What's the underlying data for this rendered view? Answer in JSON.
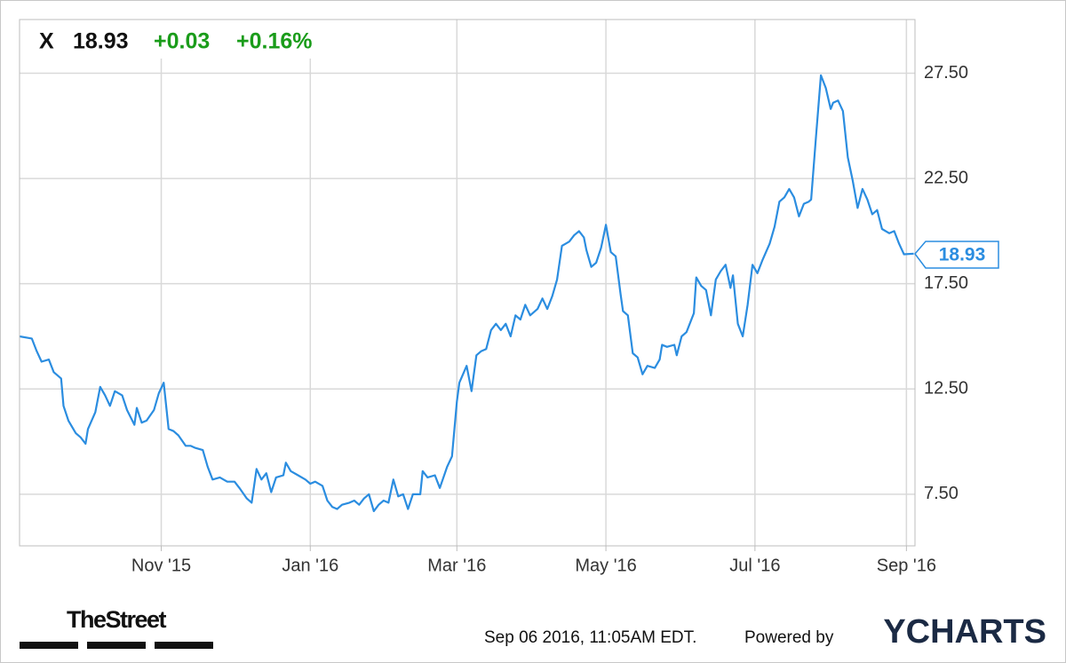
{
  "chart_data": {
    "type": "line",
    "ticker": "X",
    "price": 18.93,
    "change": "+0.03",
    "change_percent": "+0.16%",
    "grid": true,
    "xlim": [
      0,
      366.5
    ],
    "xticks": [
      {
        "value": 58,
        "label": "Nov '15"
      },
      {
        "value": 119,
        "label": "Jan '16"
      },
      {
        "value": 179,
        "label": "Mar '16"
      },
      {
        "value": 240,
        "label": "May '16"
      },
      {
        "value": 301,
        "label": "Jul '16"
      },
      {
        "value": 363,
        "label": "Sep '16"
      }
    ],
    "ylim": [
      5.05,
      30.05
    ],
    "yticks": [
      {
        "value": 7.5,
        "label": "7.50"
      },
      {
        "value": 12.5,
        "label": "12.50"
      },
      {
        "value": 17.5,
        "label": "17.50"
      },
      {
        "value": 22.5,
        "label": "22.50"
      },
      {
        "value": 27.5,
        "label": "27.50"
      }
    ],
    "x": [
      0,
      5,
      7,
      9,
      12,
      14,
      17,
      18,
      20,
      23,
      25,
      27,
      28,
      31,
      33,
      35,
      37,
      39,
      42,
      44,
      47,
      48,
      50,
      52,
      55,
      57,
      59,
      61,
      63,
      65,
      68,
      70,
      72,
      75,
      77,
      79,
      82,
      85,
      88,
      90,
      93,
      95,
      97,
      99,
      101,
      103,
      105,
      108,
      109,
      111,
      114,
      117,
      119,
      121,
      124,
      126,
      128,
      130,
      132,
      135,
      137,
      139,
      141,
      143,
      145,
      147,
      149,
      151,
      153,
      155,
      157,
      159,
      161,
      164,
      165,
      167,
      170,
      172,
      175,
      177,
      179,
      180,
      183,
      185,
      187,
      189,
      191,
      193,
      195,
      197,
      199,
      201,
      203,
      205,
      207,
      209,
      212,
      214,
      216,
      218,
      220,
      222,
      225,
      227,
      229,
      231,
      232,
      234,
      236,
      238,
      240,
      242,
      244,
      246,
      247,
      249,
      251,
      253,
      255,
      257,
      260,
      262,
      263,
      265,
      268,
      269,
      271,
      273,
      276,
      277,
      279,
      281,
      283,
      285,
      287,
      289,
      291,
      292,
      294,
      296,
      298,
      300,
      302,
      304,
      307,
      309,
      311,
      313,
      315,
      317,
      319,
      321,
      323,
      324,
      326,
      328,
      330,
      332,
      333,
      335,
      337,
      339,
      341,
      343,
      345,
      347,
      349,
      351,
      353,
      356,
      358,
      360,
      362,
      366
    ],
    "series": [
      {
        "color": "#2b8de0",
        "values": [
          15.0,
          14.9,
          14.3,
          13.8,
          13.9,
          13.3,
          13.0,
          11.7,
          11.0,
          10.4,
          10.2,
          9.9,
          10.6,
          11.4,
          12.6,
          12.2,
          11.7,
          12.4,
          12.2,
          11.5,
          10.8,
          11.6,
          10.9,
          11.0,
          11.5,
          12.3,
          12.8,
          10.6,
          10.5,
          10.3,
          9.8,
          9.8,
          9.7,
          9.6,
          8.8,
          8.2,
          8.3,
          8.1,
          8.1,
          7.8,
          7.3,
          7.1,
          8.7,
          8.2,
          8.5,
          7.6,
          8.3,
          8.4,
          9.0,
          8.6,
          8.4,
          8.2,
          8.0,
          8.1,
          7.9,
          7.2,
          6.9,
          6.8,
          7.0,
          7.1,
          7.2,
          7.0,
          7.3,
          7.5,
          6.7,
          7.0,
          7.2,
          7.1,
          8.2,
          7.4,
          7.5,
          6.8,
          7.5,
          7.5,
          8.6,
          8.3,
          8.4,
          7.8,
          8.8,
          9.3,
          11.9,
          12.8,
          13.6,
          12.4,
          14.1,
          14.3,
          14.4,
          15.3,
          15.6,
          15.3,
          15.6,
          15.0,
          16.0,
          15.8,
          16.5,
          16.0,
          16.3,
          16.8,
          16.3,
          16.9,
          17.7,
          19.3,
          19.5,
          19.8,
          20.0,
          19.7,
          19.1,
          18.3,
          18.5,
          19.2,
          20.3,
          19.0,
          18.8,
          17.0,
          16.2,
          16.0,
          14.2,
          14.0,
          13.2,
          13.6,
          13.5,
          13.9,
          14.6,
          14.5,
          14.6,
          14.1,
          15.0,
          15.2,
          16.1,
          17.8,
          17.4,
          17.2,
          16.0,
          17.7,
          18.1,
          18.4,
          17.3,
          17.9,
          15.6,
          15.0,
          16.5,
          18.4,
          18.0,
          18.6,
          19.4,
          20.2,
          21.4,
          21.6,
          22.0,
          21.6,
          20.7,
          21.3,
          21.4,
          21.5,
          24.5,
          27.4,
          26.8,
          25.8,
          26.1,
          26.2,
          25.7,
          23.5,
          22.4,
          21.1,
          22.0,
          21.5,
          20.8,
          21.0,
          20.1,
          19.9,
          20.0,
          19.4,
          18.9,
          18.93
        ]
      }
    ]
  },
  "footer": {
    "source": "TheStreet",
    "timestamp": "Sep 06 2016, 11:05AM EDT.",
    "powered_by": "Powered by",
    "brand": "YCHARTS"
  }
}
